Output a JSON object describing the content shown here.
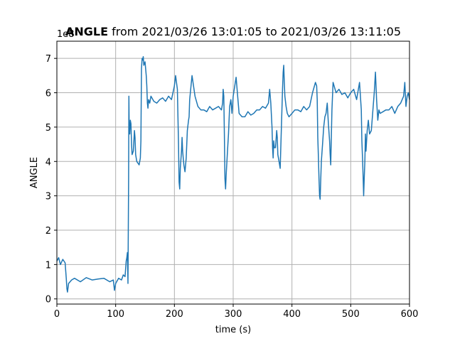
{
  "chart_data": {
    "type": "line",
    "title_bold": "ANGLE",
    "title_rest": " from 2021/03/26 13:01:05 to 2021/03/26 13:11:05",
    "xlabel": "time (s)",
    "ylabel": "ANGLE",
    "offset_label": "1e8",
    "xlim": [
      0,
      600
    ],
    "ylim": [
      -0.15,
      7.5
    ],
    "xticks": [
      0,
      100,
      200,
      300,
      400,
      500,
      600
    ],
    "yticks": [
      0,
      1,
      2,
      3,
      4,
      5,
      6,
      7
    ],
    "grid": true,
    "color": "#1f77b4",
    "series": [
      {
        "x": [
          0,
          3,
          6,
          10,
          14,
          16,
          17,
          18,
          20,
          25,
          30,
          40,
          50,
          60,
          70,
          80,
          90,
          96,
          98,
          100,
          105,
          110,
          113,
          116,
          118,
          119,
          120,
          121,
          122,
          122.5,
          123,
          124,
          125,
          126,
          127,
          128,
          130,
          132,
          133,
          134,
          136,
          140,
          142,
          143,
          144,
          145,
          146,
          147,
          148,
          150,
          152,
          153,
          154,
          155,
          156,
          158,
          160,
          165,
          170,
          175,
          180,
          185,
          190,
          195,
          200,
          202,
          205,
          207,
          208,
          209,
          210,
          212,
          213,
          214,
          216,
          218,
          220,
          222,
          224,
          225,
          226,
          230,
          235,
          240,
          245,
          250,
          255,
          260,
          265,
          270,
          275,
          280,
          282,
          283,
          284,
          285,
          286,
          287,
          288,
          290,
          292,
          294,
          296,
          298,
          300,
          305,
          310,
          315,
          320,
          325,
          330,
          335,
          340,
          345,
          350,
          355,
          360,
          362,
          364,
          366,
          367,
          368,
          369,
          370,
          372,
          374,
          375,
          376,
          378,
          380,
          384,
          385,
          386,
          387,
          388,
          390,
          392,
          395,
          400,
          405,
          410,
          415,
          420,
          425,
          430,
          435,
          440,
          442,
          443,
          444,
          445,
          446,
          447,
          448,
          449,
          450,
          452,
          454,
          456,
          458,
          460,
          462,
          464,
          465,
          466,
          468,
          470,
          475,
          480,
          485,
          490,
          495,
          500,
          505,
          510,
          515,
          518,
          519,
          520,
          521,
          522,
          523,
          524,
          525,
          526,
          528,
          530,
          532,
          535,
          540,
          542,
          544,
          546,
          548,
          550,
          555,
          560,
          565,
          570,
          575,
          580,
          585,
          590,
          592,
          594,
          596,
          598,
          600
        ],
        "y": [
          1.1,
          1.2,
          1.0,
          1.15,
          1.05,
          0.6,
          0.3,
          0.2,
          0.45,
          0.55,
          0.6,
          0.5,
          0.62,
          0.55,
          0.58,
          0.6,
          0.5,
          0.55,
          0.25,
          0.45,
          0.6,
          0.55,
          0.7,
          0.65,
          1.1,
          1.2,
          1.35,
          0.45,
          3.5,
          5.9,
          5.0,
          4.8,
          5.2,
          5.1,
          4.5,
          4.2,
          4.3,
          4.9,
          4.7,
          4.2,
          4.0,
          3.9,
          4.1,
          4.6,
          6.7,
          7.0,
          6.95,
          7.05,
          6.8,
          6.9,
          6.5,
          6.2,
          5.7,
          5.55,
          5.8,
          5.7,
          5.9,
          5.75,
          5.7,
          5.8,
          5.85,
          5.75,
          5.9,
          5.8,
          6.2,
          6.5,
          6.1,
          4.5,
          3.4,
          3.2,
          3.8,
          4.3,
          4.7,
          4.3,
          3.9,
          3.7,
          4.1,
          4.9,
          5.2,
          5.3,
          5.8,
          6.5,
          5.9,
          5.6,
          5.5,
          5.5,
          5.45,
          5.6,
          5.5,
          5.55,
          5.6,
          5.5,
          5.7,
          6.1,
          5.9,
          4.8,
          3.5,
          3.2,
          3.6,
          4.2,
          4.8,
          5.6,
          5.8,
          5.4,
          5.9,
          6.45,
          5.4,
          5.3,
          5.3,
          5.45,
          5.35,
          5.4,
          5.5,
          5.5,
          5.6,
          5.55,
          5.7,
          6.1,
          5.7,
          5.0,
          4.4,
          4.1,
          4.6,
          4.4,
          4.4,
          4.9,
          4.7,
          4.2,
          4.0,
          3.8,
          6.1,
          6.6,
          6.8,
          6.3,
          5.9,
          5.6,
          5.4,
          5.3,
          5.4,
          5.5,
          5.5,
          5.45,
          5.6,
          5.5,
          5.6,
          6.0,
          6.3,
          6.2,
          5.8,
          4.7,
          4.1,
          3.5,
          3.0,
          2.9,
          3.5,
          4.0,
          4.5,
          5.0,
          5.3,
          5.4,
          5.7,
          5.1,
          4.6,
          4.2,
          3.9,
          5.5,
          6.3,
          6.0,
          6.1,
          5.95,
          6.0,
          5.85,
          6.0,
          6.1,
          5.8,
          6.3,
          5.5,
          4.6,
          4.1,
          3.6,
          3.0,
          3.5,
          4.0,
          4.8,
          4.3,
          4.9,
          5.2,
          4.8,
          4.9,
          6.0,
          6.6,
          5.8,
          5.2,
          5.5,
          5.4,
          5.45,
          5.5,
          5.5,
          5.6,
          5.4,
          5.6,
          5.7,
          5.9,
          6.3,
          5.6,
          5.9,
          6.0,
          5.8
        ]
      }
    ]
  }
}
